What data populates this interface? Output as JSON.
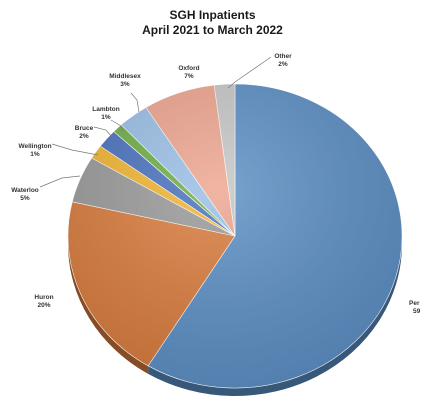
{
  "chart_data": {
    "type": "pie",
    "title": "SGH Inpatients",
    "subtitle": "April 2021 to March 2022",
    "slices": [
      {
        "name": "Perth",
        "label": "Per",
        "pct_label": "59",
        "value": 59,
        "color": "#5b8ec4"
      },
      {
        "name": "Huron",
        "label": "Huron",
        "pct_label": "20%",
        "value": 20,
        "color": "#d97b3c"
      },
      {
        "name": "Waterloo",
        "label": "Waterloo",
        "pct_label": "5%",
        "value": 5,
        "color": "#9a9a9a"
      },
      {
        "name": "Wellington",
        "label": "Wellington",
        "pct_label": "1%",
        "value": 1.5,
        "color": "#f2b632"
      },
      {
        "name": "Bruce",
        "label": "Bruce",
        "pct_label": "2%",
        "value": 2,
        "color": "#4a72be"
      },
      {
        "name": "Lambton",
        "label": "Lambton",
        "pct_label": "1%",
        "value": 1,
        "color": "#6fae45"
      },
      {
        "name": "Middlesex",
        "label": "Middlesex",
        "pct_label": "3%",
        "value": 3,
        "color": "#9bbfe6"
      },
      {
        "name": "Oxford",
        "label": "Oxford",
        "pct_label": "7%",
        "value": 7,
        "color": "#eea58f"
      },
      {
        "name": "Other",
        "label": "Other",
        "pct_label": "2%",
        "value": 2,
        "color": "#c6c6c6"
      }
    ]
  }
}
